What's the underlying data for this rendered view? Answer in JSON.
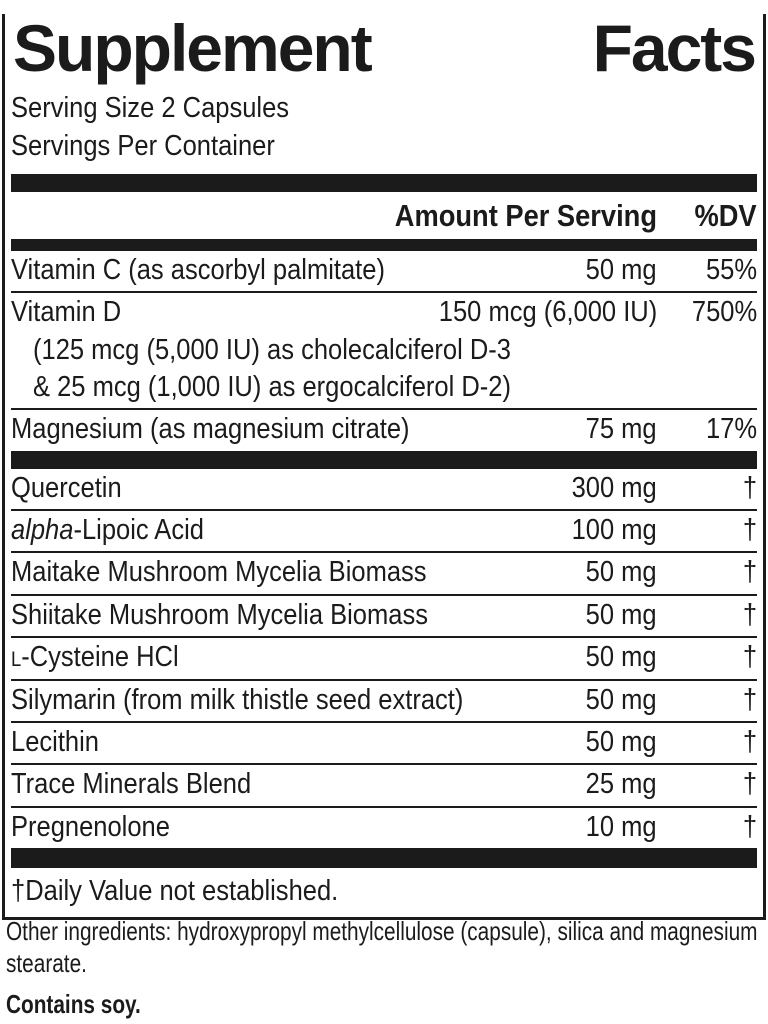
{
  "label": {
    "title": {
      "word1": "Supplement",
      "word2": "Facts"
    },
    "serving_size": "Serving Size 2 Capsules",
    "servings_per_container": "Servings Per Container",
    "columns": {
      "amount_header": "Amount Per Serving",
      "dv_header": "%DV"
    },
    "vitamin_rows": [
      {
        "name": "Vitamin C (as ascorbyl palmitate)",
        "amount": "50 mg",
        "dv": "55%"
      },
      {
        "name": "Vitamin D",
        "amount": "150 mcg (6,000 IU)",
        "dv": "750%",
        "sub_line1": "(125 mcg (5,000 IU) as cholecalciferol D-3",
        "sub_line2": "& 25 mcg (1,000 IU) as ergocalciferol D-2)"
      },
      {
        "name": "Magnesium (as magnesium citrate)",
        "amount": "75 mg",
        "dv": "17%"
      }
    ],
    "botanical_rows": [
      {
        "name": "Quercetin",
        "amount": "300 mg",
        "dv": "†"
      },
      {
        "name_italic_prefix": "alpha",
        "name": "-Lipoic Acid",
        "amount": "100 mg",
        "dv": "†"
      },
      {
        "name": "Maitake Mushroom Mycelia Biomass",
        "amount": "50 mg",
        "dv": "†"
      },
      {
        "name": "Shiitake Mushroom Mycelia Biomass",
        "amount": "50 mg",
        "dv": "†"
      },
      {
        "name_smallcap_prefix": "L",
        "name": "-Cysteine HCl",
        "amount": "50 mg",
        "dv": "†"
      },
      {
        "name": "Silymarin (from milk thistle seed extract)",
        "amount": "50 mg",
        "dv": "†"
      },
      {
        "name": "Lecithin",
        "amount": "50 mg",
        "dv": "†"
      },
      {
        "name": "Trace Minerals Blend",
        "amount": "25 mg",
        "dv": "†"
      },
      {
        "name": "Pregnenolone",
        "amount": "10 mg",
        "dv": "†"
      }
    ],
    "footnote": "†Daily Value not established.",
    "colors": {
      "ink": "#1b1b1b",
      "background": "#ffffff"
    }
  },
  "below_label": {
    "other_ingredients": "Other ingredients: hydroxypropyl methylcellulose (capsule), silica and magnesium stearate.",
    "contains": "Contains soy."
  }
}
